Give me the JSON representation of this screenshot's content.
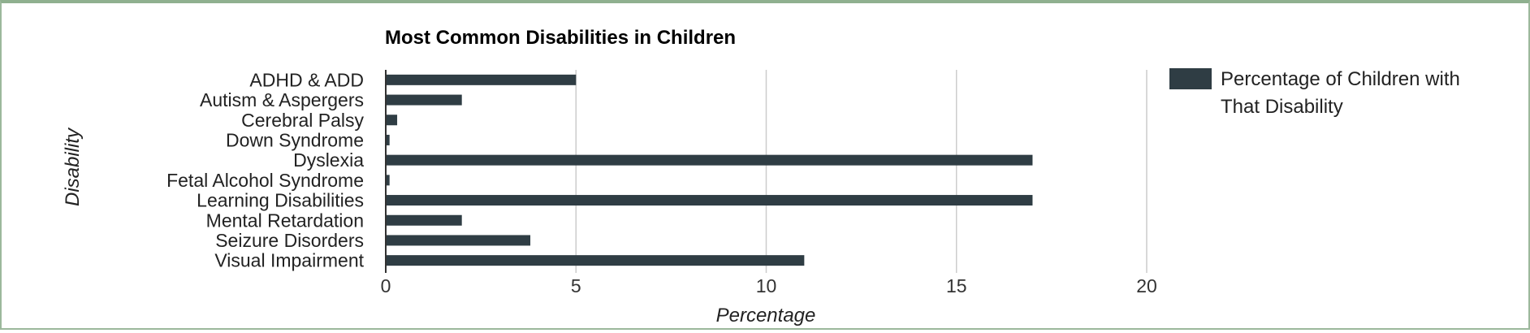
{
  "chart_data": {
    "type": "bar",
    "orientation": "horizontal",
    "title": "Most Common Disabilities in Children",
    "xlabel": "Percentage",
    "ylabel": "Disability",
    "categories": [
      "ADHD & ADD",
      "Autism & Aspergers",
      "Cerebral Palsy",
      "Down Syndrome",
      "Dyslexia",
      "Fetal Alcohol Syndrome",
      "Learning Disabilities",
      "Mental Retardation",
      "Seizure Disorders",
      "Visual Impairment"
    ],
    "series": [
      {
        "name": "Percentage of Children with That Disability",
        "values": [
          5,
          2,
          0.3,
          0.1,
          17,
          0.1,
          17,
          2,
          3.8,
          11
        ]
      }
    ],
    "xlim": [
      0,
      20
    ],
    "xticks": [
      0,
      5,
      10,
      15,
      20
    ],
    "grid": true,
    "legend": {
      "position": "right",
      "lines": [
        "Percentage of Children with",
        "That Disability"
      ]
    },
    "colors": {
      "bar": "#2f3d44",
      "grid": "#cccccc",
      "frame": "#9cb89c"
    }
  }
}
